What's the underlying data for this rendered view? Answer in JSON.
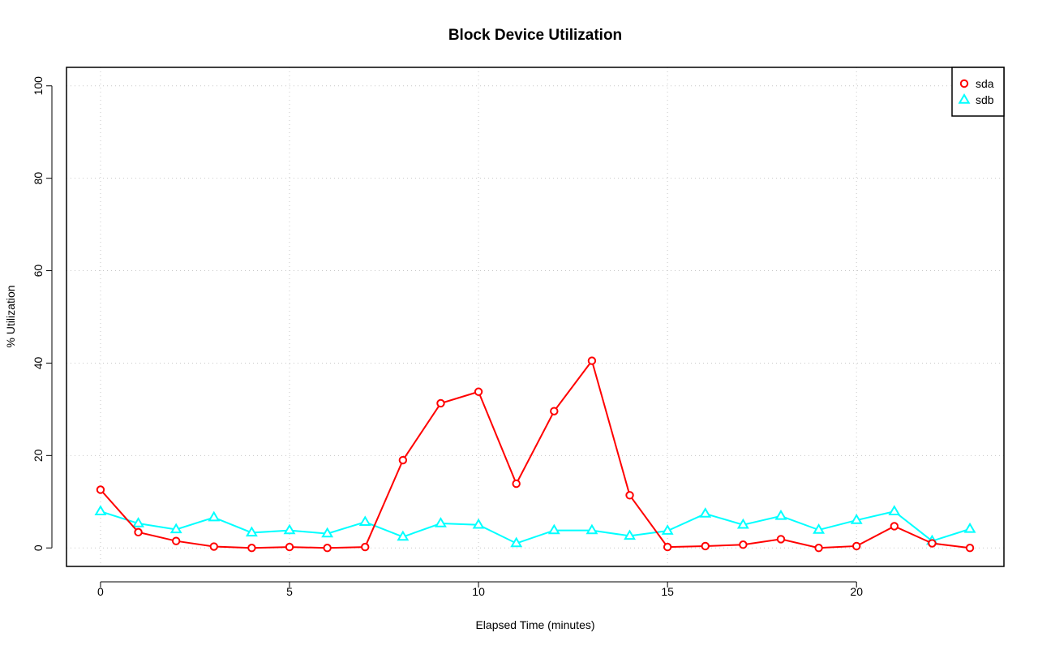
{
  "chart_data": {
    "type": "line",
    "title": "Block Device Utilization",
    "xlabel": "Elapsed Time (minutes)",
    "ylabel": "% Utilization",
    "xlim": [
      -0.9,
      23.9
    ],
    "ylim": [
      -4,
      104
    ],
    "xticks": [
      0,
      5,
      10,
      15,
      20
    ],
    "yticks": [
      0,
      20,
      40,
      60,
      80,
      100
    ],
    "grid": true,
    "legend_position": "top-right",
    "x": [
      0,
      1,
      2,
      3,
      4,
      5,
      6,
      7,
      8,
      9,
      10,
      11,
      12,
      13,
      14,
      15,
      16,
      17,
      18,
      19,
      20,
      21,
      22,
      23
    ],
    "series": [
      {
        "name": "sda",
        "color": "#ff0000",
        "marker": "circle",
        "values": [
          12.6,
          3.4,
          1.5,
          0.3,
          0.0,
          0.2,
          0.0,
          0.2,
          19.0,
          31.3,
          33.8,
          13.9,
          29.6,
          40.5,
          11.4,
          0.2,
          0.4,
          0.7,
          1.9,
          0.0,
          0.4,
          4.7,
          1.0,
          0.0
        ]
      },
      {
        "name": "sdb",
        "color": "#00ffff",
        "marker": "triangle",
        "values": [
          7.9,
          5.3,
          4.0,
          6.6,
          3.3,
          3.8,
          3.1,
          5.6,
          2.4,
          5.3,
          5.0,
          1.0,
          3.8,
          3.8,
          2.6,
          3.7,
          7.4,
          5.0,
          6.9,
          3.9,
          6.0,
          7.9,
          1.5,
          4.1
        ]
      }
    ]
  }
}
